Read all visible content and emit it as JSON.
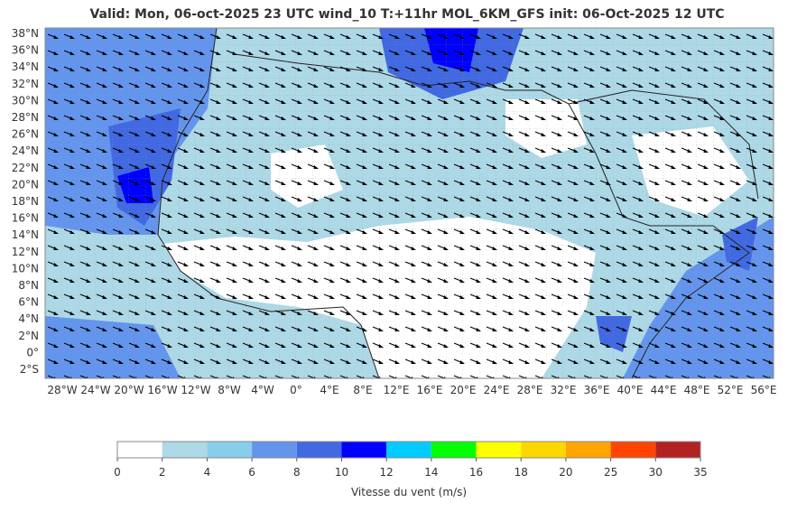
{
  "header": {
    "title": "Valid: Mon, 06-oct-2025   23 UTC   wind_10   T:+11hr   MOL_6KM_GFS   init: 06-Oct-2025    12 UTC"
  },
  "map": {
    "lat_labels": [
      "38°N",
      "36°N",
      "34°N",
      "32°N",
      "30°N",
      "28°N",
      "26°N",
      "24°N",
      "22°N",
      "20°N",
      "18°N",
      "16°N",
      "14°N",
      "12°N",
      "10°N",
      "8°N",
      "6°N",
      "4°N",
      "2°N",
      "0°",
      "2°S"
    ],
    "lon_labels": [
      "28°W",
      "24°W",
      "20°W",
      "16°W",
      "12°W",
      "8°W",
      "4°W",
      "0°",
      "4°E",
      "8°E",
      "12°E",
      "16°E",
      "20°E",
      "24°E",
      "28°E",
      "32°E",
      "36°E",
      "40°E",
      "44°E",
      "48°E",
      "52°E",
      "56°E"
    ]
  },
  "colorbar": {
    "ticks": [
      0,
      2,
      4,
      6,
      8,
      10,
      12,
      14,
      16,
      18,
      20,
      25,
      30,
      35
    ],
    "colors": [
      "#ffffff",
      "#add8e6",
      "#87ceeb",
      "#6495ed",
      "#4169e1",
      "#0000ff",
      "#00ccff",
      "#00ff00",
      "#ffff00",
      "#ffd700",
      "#ffa500",
      "#ff4500",
      "#b22222"
    ],
    "label": "Vitesse du vent (m/s)"
  }
}
